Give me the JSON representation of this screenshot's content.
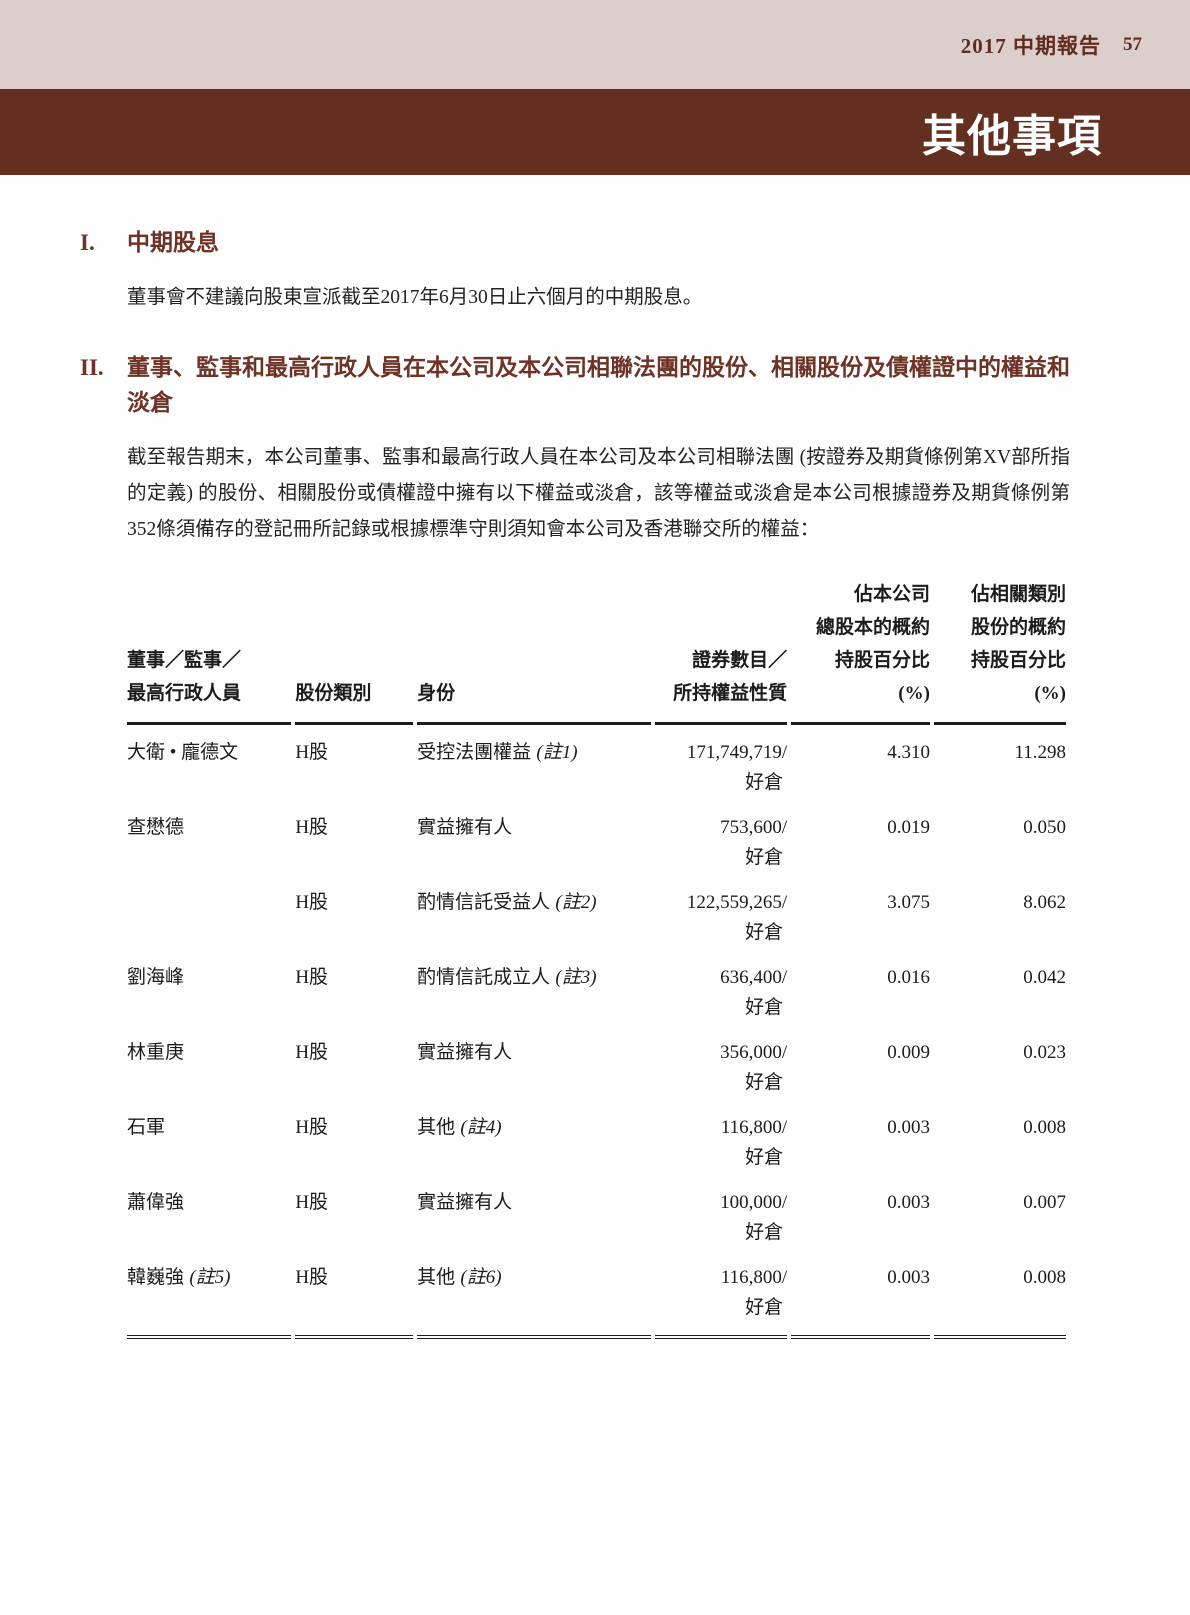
{
  "theme": {
    "topbar_bg": "#dccecb",
    "banner_bg": "#622f20",
    "heading_color": "#6d3326",
    "text_color": "#1f1f1f"
  },
  "header": {
    "report_title": "2017 中期報告",
    "page_number": "57"
  },
  "banner": {
    "title": "其他事項"
  },
  "sections": [
    {
      "number": "I.",
      "title": "中期股息",
      "body": "董事會不建議向股東宣派截至2017年6月30日止六個月的中期股息。"
    },
    {
      "number": "II.",
      "title": "董事、監事和最高行政人員在本公司及本公司相聯法團的股份、相關股份及債權證中的權益和淡倉",
      "body": "截至報告期末，本公司董事、監事和最高行政人員在本公司及本公司相聯法團 (按證券及期貨條例第XV部所指的定義) 的股份、相關股份或債權證中擁有以下權益或淡倉，該等權益或淡倉是本公司根據證券及期貨條例第352條須備存的登記冊所記錄或根據標準守則須知會本公司及香港聯交所的權益："
    }
  ],
  "table": {
    "headers": {
      "col1_line1": "董事／監事／",
      "col1_line2": "最高行政人員",
      "col2": "股份類別",
      "col3": "身份",
      "col4_line1": "證券數目／",
      "col4_line2": "所持權益性質",
      "col5_line1": "佔本公司",
      "col5_line2": "總股本的概約",
      "col5_line3": "持股百分比",
      "col5_line4": "(%)",
      "col6_line1": "佔相關類別",
      "col6_line2": "股份的概約",
      "col6_line3": "持股百分比",
      "col6_line4": "(%)"
    },
    "rows": [
      {
        "name": "大衛 • 龐德文",
        "name_note": "",
        "share_class": "H股",
        "capacity": "受控法團權益",
        "capacity_note": "(註1)",
        "securities": "171,749,719/",
        "position": "好倉",
        "pct_total": "4.310",
        "pct_class": "11.298"
      },
      {
        "name": "查懋德",
        "name_note": "",
        "share_class": "H股",
        "capacity": "實益擁有人",
        "capacity_note": "",
        "securities": "753,600/",
        "position": "好倉",
        "pct_total": "0.019",
        "pct_class": "0.050"
      },
      {
        "name": "",
        "name_note": "",
        "share_class": "H股",
        "capacity": "酌情信託受益人",
        "capacity_note": "(註2)",
        "securities": "122,559,265/",
        "position": "好倉",
        "pct_total": "3.075",
        "pct_class": "8.062"
      },
      {
        "name": "劉海峰",
        "name_note": "",
        "share_class": "H股",
        "capacity": "酌情信託成立人",
        "capacity_note": "(註3)",
        "securities": "636,400/",
        "position": "好倉",
        "pct_total": "0.016",
        "pct_class": "0.042"
      },
      {
        "name": "林重庚",
        "name_note": "",
        "share_class": "H股",
        "capacity": "實益擁有人",
        "capacity_note": "",
        "securities": "356,000/",
        "position": "好倉",
        "pct_total": "0.009",
        "pct_class": "0.023"
      },
      {
        "name": "石軍",
        "name_note": "",
        "share_class": "H股",
        "capacity": "其他",
        "capacity_note": "(註4)",
        "securities": "116,800/",
        "position": "好倉",
        "pct_total": "0.003",
        "pct_class": "0.008"
      },
      {
        "name": "蕭偉強",
        "name_note": "",
        "share_class": "H股",
        "capacity": "實益擁有人",
        "capacity_note": "",
        "securities": "100,000/",
        "position": "好倉",
        "pct_total": "0.003",
        "pct_class": "0.007"
      },
      {
        "name": "韓巍強",
        "name_note": "(註5)",
        "share_class": "H股",
        "capacity": "其他",
        "capacity_note": "(註6)",
        "securities": "116,800/",
        "position": "好倉",
        "pct_total": "0.003",
        "pct_class": "0.008"
      }
    ]
  }
}
